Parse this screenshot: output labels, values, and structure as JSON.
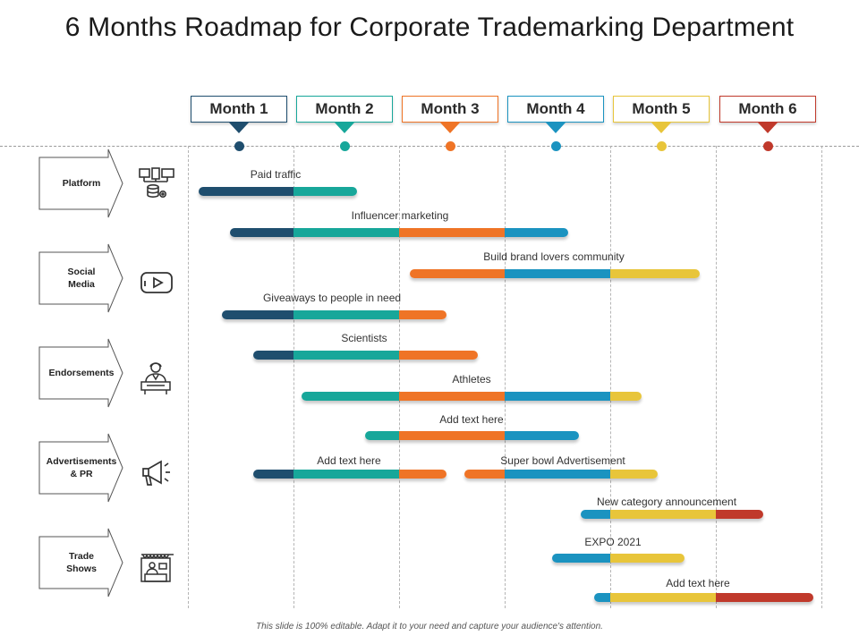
{
  "title": "6 Months Roadmap for Corporate Trademarking Department",
  "months": [
    {
      "label": "Month 1",
      "color": "#1f4e6e"
    },
    {
      "label": "Month 2",
      "color": "#17a79a"
    },
    {
      "label": "Month 3",
      "color": "#ef7426"
    },
    {
      "label": "Month 4",
      "color": "#1b93c0"
    },
    {
      "label": "Month 5",
      "color": "#e8c53a"
    },
    {
      "label": "Month 6",
      "color": "#c0392b"
    }
  ],
  "categories": [
    {
      "label": "Platform",
      "icon": "network-devices-icon"
    },
    {
      "label": "Social\nMedia",
      "icon": "video-play-icon"
    },
    {
      "label": "Endorsements",
      "icon": "person-at-desk-icon"
    },
    {
      "label": "Advertisements\n& PR",
      "icon": "megaphone-icon"
    },
    {
      "label": "Trade\nShows",
      "icon": "exhibition-stand-icon"
    }
  ],
  "tasks": [
    {
      "label": "Paid traffic",
      "start": 0.1,
      "end": 1.6
    },
    {
      "label": "Influencer marketing",
      "start": 0.4,
      "end": 3.6
    },
    {
      "label": "Build brand lovers community",
      "start": 2.1,
      "end": 4.85
    },
    {
      "label": "Giveaways to people in need",
      "start": 0.32,
      "end": 2.45
    },
    {
      "label": "Scientists",
      "start": 0.62,
      "end": 2.75
    },
    {
      "label": "Athletes",
      "start": 1.08,
      "end": 4.3
    },
    {
      "label": "Add text here",
      "start": 1.68,
      "end": 3.7
    },
    {
      "label": "Add text here",
      "start": 0.62,
      "end": 2.45
    },
    {
      "label": "Super bowl Advertisement",
      "start": 2.62,
      "end": 4.45
    },
    {
      "label": "New category announcement",
      "start": 3.72,
      "end": 5.45
    },
    {
      "label": "EXPO 2021",
      "start": 3.45,
      "end": 4.7
    },
    {
      "label": "Add text here",
      "start": 3.85,
      "end": 5.92
    }
  ],
  "footer": "This slide is 100% editable. Adapt it to your need and capture your audience's attention."
}
